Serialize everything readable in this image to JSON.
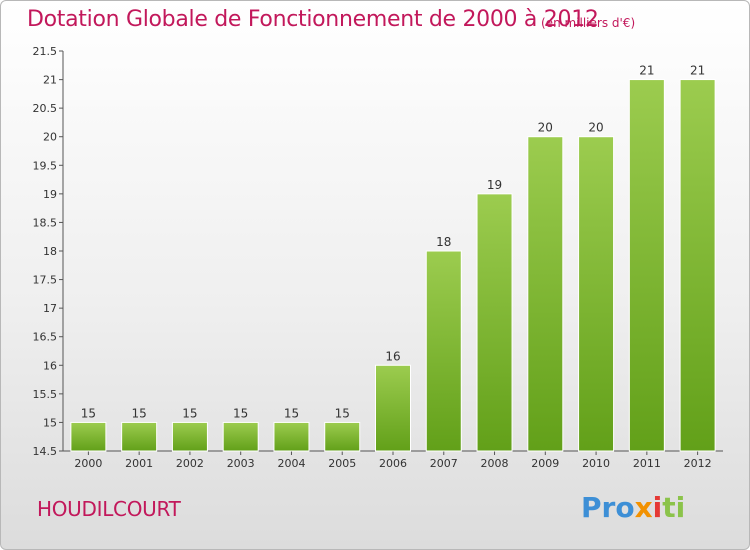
{
  "chart_data": {
    "type": "bar",
    "title": "Dotation Globale de Fonctionnement de 2000 à 2012",
    "unit": "(en milliers d'€)",
    "categories": [
      "2000",
      "2001",
      "2002",
      "2003",
      "2004",
      "2005",
      "2006",
      "2007",
      "2008",
      "2009",
      "2010",
      "2011",
      "2012"
    ],
    "values": [
      15,
      15,
      15,
      15,
      15,
      15,
      16,
      18,
      19,
      20,
      20,
      21,
      21
    ],
    "ylim": [
      14.5,
      21.5
    ],
    "yticks": [
      "14.5",
      "15",
      "15.5",
      "16",
      "16.5",
      "17",
      "17.5",
      "18",
      "18.5",
      "19",
      "19.5",
      "20",
      "20.5",
      "21",
      "21.5"
    ],
    "grid": false,
    "colors": {
      "bar_top": "#9ccc4f",
      "bar_bottom": "#62a019",
      "title": "#c2185b"
    }
  },
  "footer": {
    "commune": "HOUDILCOURT",
    "logo": [
      "Pro",
      "x",
      "i",
      "ti"
    ]
  }
}
